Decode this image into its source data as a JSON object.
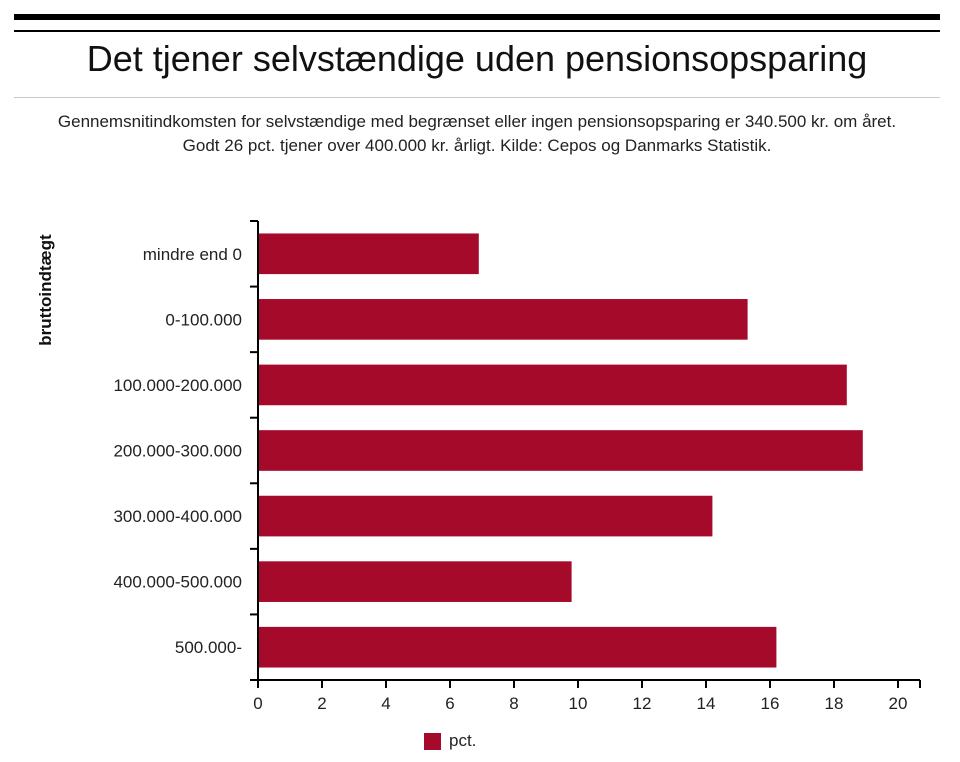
{
  "title": "Det tjener selvstændige uden pensionsopsparing",
  "subtitle": "Gennemsnitindkomsten for selvstændige med begrænset eller ingen pensionsopsparing er 340.500 kr. om året. Godt 26 pct. tjener over 400.000 kr. årligt. Kilde: Cepos og Danmarks Statistik.",
  "chart_data": {
    "type": "bar",
    "orientation": "horizontal",
    "ylabel": "bruttoindtægt",
    "xlabel": "",
    "categories": [
      "mindre end 0",
      "0-100.000",
      "100.000-200.000",
      "200.000-300.000",
      "300.000-400.000",
      "400.000-500.000",
      "500.000-"
    ],
    "series": [
      {
        "name": "pct.",
        "values": [
          6.9,
          15.3,
          18.4,
          18.9,
          14.2,
          9.8,
          16.2
        ],
        "color": "#a50a2b"
      }
    ],
    "xlim": [
      0,
      20
    ],
    "xticks": [
      "0",
      "2",
      "4",
      "6",
      "8",
      "10",
      "12",
      "14",
      "16",
      "18",
      "20"
    ],
    "grid": false,
    "legend_position": "bottom"
  }
}
